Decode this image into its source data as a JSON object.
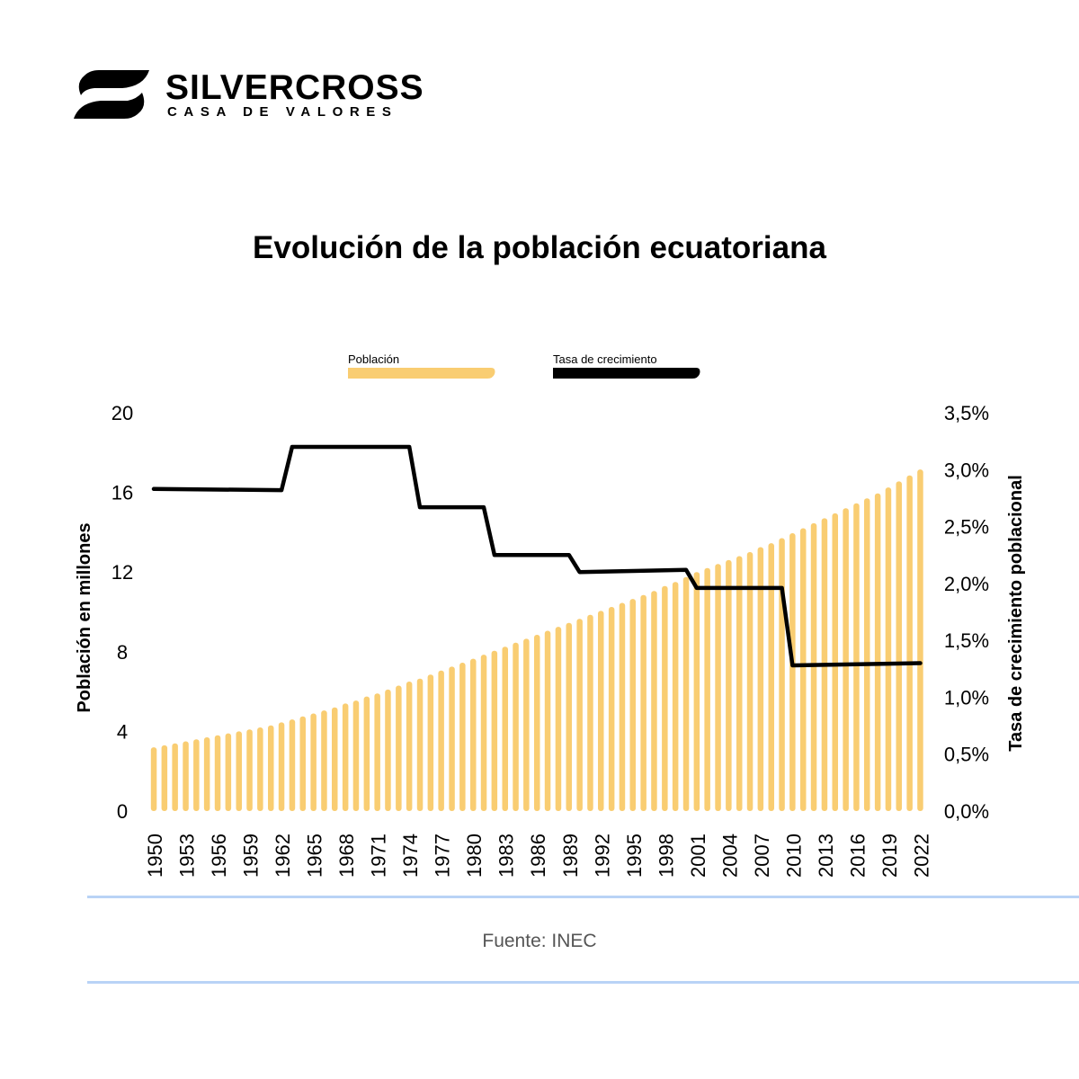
{
  "brand": {
    "name": "SILVERCROSS",
    "tagline": "CASA DE VALORES"
  },
  "colors": {
    "bars": "#f9cd72",
    "line": "#000000",
    "divider": "#b9d3f6",
    "source_text": "#555555"
  },
  "footer": {
    "source": "Fuente: INEC"
  },
  "chart_data": {
    "type": "bar",
    "title": "Evolución de la población ecuatoriana",
    "ylabel": "Población en millones",
    "y2label": "Tasa de crecimiento poblacional",
    "legend_position": "top-center",
    "grid": false,
    "ylim": [
      0,
      20
    ],
    "y2lim": [
      0,
      3.5
    ],
    "y_ticks": [
      "0",
      "4",
      "8",
      "12",
      "16",
      "20"
    ],
    "y2_ticks": [
      "0,0%",
      "0,5%",
      "1,0%",
      "1,5%",
      "2,0%",
      "2,5%",
      "3,0%",
      "3,5%"
    ],
    "x_tick_labels": [
      "1950",
      "1953",
      "1956",
      "1959",
      "1962",
      "1965",
      "1968",
      "1971",
      "1974",
      "1977",
      "1980",
      "1983",
      "1986",
      "1989",
      "1992",
      "1995",
      "1998",
      "2001",
      "2004",
      "2007",
      "2010",
      "2013",
      "2016",
      "2019",
      "2022"
    ],
    "x": [
      1950,
      1951,
      1952,
      1953,
      1954,
      1955,
      1956,
      1957,
      1958,
      1959,
      1960,
      1961,
      1962,
      1963,
      1964,
      1965,
      1966,
      1967,
      1968,
      1969,
      1970,
      1971,
      1972,
      1973,
      1974,
      1975,
      1976,
      1977,
      1978,
      1979,
      1980,
      1981,
      1982,
      1983,
      1984,
      1985,
      1986,
      1987,
      1988,
      1989,
      1990,
      1991,
      1992,
      1993,
      1994,
      1995,
      1996,
      1997,
      1998,
      1999,
      2000,
      2001,
      2002,
      2003,
      2004,
      2005,
      2006,
      2007,
      2008,
      2009,
      2010,
      2011,
      2012,
      2013,
      2014,
      2015,
      2016,
      2017,
      2018,
      2019,
      2020,
      2021,
      2022
    ],
    "series": [
      {
        "name": "Población",
        "type": "bar",
        "axis": "left",
        "values": [
          3.2,
          3.3,
          3.4,
          3.5,
          3.6,
          3.7,
          3.8,
          3.9,
          4.0,
          4.1,
          4.2,
          4.3,
          4.45,
          4.6,
          4.75,
          4.9,
          5.05,
          5.2,
          5.4,
          5.55,
          5.75,
          5.9,
          6.1,
          6.3,
          6.5,
          6.65,
          6.85,
          7.05,
          7.25,
          7.45,
          7.65,
          7.85,
          8.05,
          8.25,
          8.45,
          8.65,
          8.85,
          9.05,
          9.25,
          9.45,
          9.65,
          9.85,
          10.05,
          10.25,
          10.45,
          10.65,
          10.85,
          11.05,
          11.3,
          11.5,
          11.75,
          12.0,
          12.2,
          12.4,
          12.6,
          12.8,
          13.0,
          13.25,
          13.45,
          13.7,
          13.95,
          14.2,
          14.45,
          14.7,
          14.95,
          15.2,
          15.45,
          15.7,
          15.95,
          16.25,
          16.55,
          16.85,
          17.15
        ]
      },
      {
        "name": "Tasa de crecimiento",
        "type": "line",
        "axis": "right",
        "points": [
          [
            1950,
            2.83
          ],
          [
            1962,
            2.82
          ],
          [
            1963,
            3.2
          ],
          [
            1974,
            3.2
          ],
          [
            1975,
            2.67
          ],
          [
            1981,
            2.67
          ],
          [
            1982,
            2.25
          ],
          [
            1989,
            2.25
          ],
          [
            1990,
            2.1
          ],
          [
            2000,
            2.12
          ],
          [
            2001,
            1.96
          ],
          [
            2009,
            1.96
          ],
          [
            2010,
            1.28
          ],
          [
            2022,
            1.3
          ]
        ]
      }
    ]
  }
}
